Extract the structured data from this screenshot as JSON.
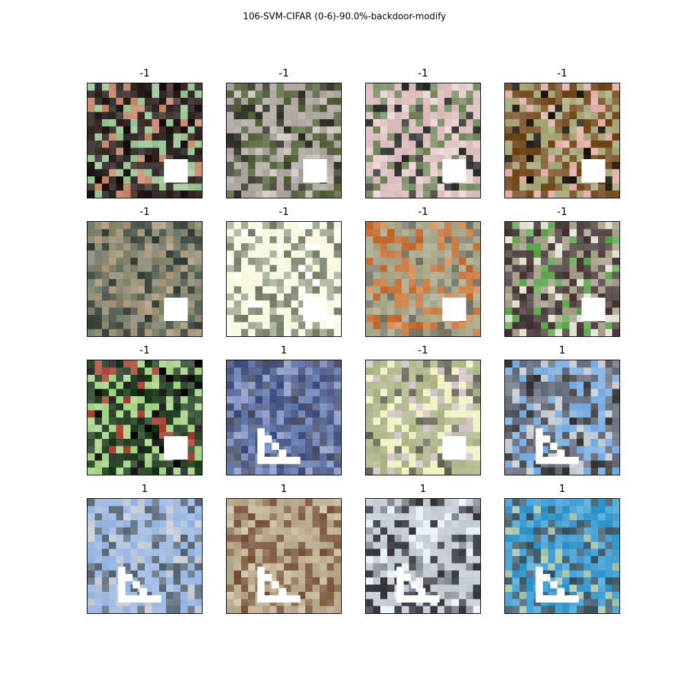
{
  "figure": {
    "title": "106-SVM-CIFAR (0-6)-90.0%-backdoor-modify"
  },
  "panels": [
    {
      "label": "-1",
      "trigger": "square",
      "colors": [
        "#0f0705",
        "#8fbf8a",
        "#c08060",
        "#2a1510"
      ]
    },
    {
      "label": "-1",
      "trigger": "square",
      "colors": [
        "#a8a098",
        "#4a5a30",
        "#2a2a20",
        "#c8c0b8"
      ]
    },
    {
      "label": "-1",
      "trigger": "square",
      "colors": [
        "#d8b8b8",
        "#6a8050",
        "#202020",
        "#e8d0d0"
      ]
    },
    {
      "label": "-1",
      "trigger": "square",
      "colors": [
        "#6a4010",
        "#a0a070",
        "#e0a8a0",
        "#100800"
      ]
    },
    {
      "label": "-1",
      "trigger": "square",
      "colors": [
        "#7a7a60",
        "#303830",
        "#a09070",
        "#506050"
      ]
    },
    {
      "label": "-1",
      "trigger": "square",
      "colors": [
        "#f8f8e0",
        "#707860",
        "#a0a890",
        "#ffffff"
      ]
    },
    {
      "label": "-1",
      "trigger": "square",
      "colors": [
        "#a0a080",
        "#c06020",
        "#707060",
        "#d08040"
      ]
    },
    {
      "label": "-1",
      "trigger": "square",
      "colors": [
        "#403030",
        "#a09880",
        "#50a040",
        "#e0e0d0"
      ]
    },
    {
      "label": "-1",
      "trigger": "square",
      "colors": [
        "#103010",
        "#a0d080",
        "#000000",
        "#a03020"
      ]
    },
    {
      "label": "1",
      "trigger": "triangle",
      "colors": [
        "#38487a",
        "#5870a8",
        "#8090c0",
        "#404860"
      ]
    },
    {
      "label": "-1",
      "trigger": "square",
      "colors": [
        "#a8b080",
        "#f0f0c0",
        "#606050",
        "#d0c0c8"
      ]
    },
    {
      "label": "1",
      "trigger": "triangle",
      "colors": [
        "#606878",
        "#70a8e0",
        "#303030",
        "#c0c8d0"
      ]
    },
    {
      "label": "1",
      "trigger": "triangle",
      "colors": [
        "#90b0e0",
        "#506070",
        "#a0b8d8",
        "#c0c8d0"
      ]
    },
    {
      "label": "1",
      "trigger": "triangle",
      "colors": [
        "#b0a080",
        "#704830",
        "#c8b898",
        "#806040"
      ]
    },
    {
      "label": "1",
      "trigger": "triangle",
      "colors": [
        "#c0c8d0",
        "#303038",
        "#e8f0f8",
        "#808890"
      ]
    },
    {
      "label": "1",
      "trigger": "triangle",
      "colors": [
        "#2890c8",
        "#305060",
        "#3aa0d8",
        "#a0c0a0"
      ]
    }
  ]
}
